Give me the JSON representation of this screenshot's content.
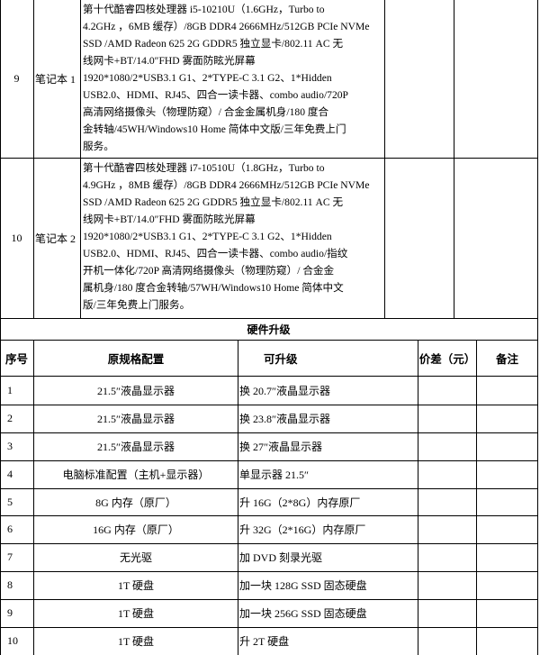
{
  "top_rows": [
    {
      "no": "9",
      "name": "笔记本 1",
      "spec": [
        "第十代酷睿四核处理器 i5-10210U（1.6GHz，Turbo to",
        "4.2GHz ，6MB 缓存）/8GB DDR4 2666MHz/512GB PCIe NVMe",
        "SSD /AMD Radeon 625 2G GDDR5 独立显卡/802.11 AC 无",
        "线网卡+BT/14.0″FHD 雾面防眩光屏幕",
        "1920*1080/2*USB3.1 G1、2*TYPE-C 3.1 G2、1*Hidden",
        "USB2.0、HDMI、RJ45、四合一读卡器、combo audio/720P",
        "高清网络摄像头（物理防窥）/ 合金金属机身/180 度合",
        "金转轴/45WH/Windows10 Home 简体中文版/三年免费上门",
        "服务。"
      ]
    },
    {
      "no": "10",
      "name": "笔记本 2",
      "spec": [
        "第十代酷睿四核处理器 i7-10510U（1.8GHz，Turbo to",
        "4.9GHz ，8MB 缓存）/8GB DDR4 2666MHz/512GB PCIe NVMe",
        "SSD /AMD Radeon 625 2G GDDR5 独立显卡/802.11 AC 无",
        "线网卡+BT/14.0″FHD 雾面防眩光屏幕",
        "1920*1080/2*USB3.1 G1、2*TYPE-C 3.1 G2、1*Hidden",
        "USB2.0、HDMI、RJ45、四合一读卡器、combo audio/指纹",
        "开机一体化/720P 高清网络摄像头（物理防窥）/ 合金金",
        "属机身/180 度合金转轴/57WH/Windows10 Home 简体中文",
        "版/三年免费上门服务。"
      ]
    }
  ],
  "upgrade": {
    "title": "硬件升级",
    "headers": [
      "序号",
      "原规格配置",
      "可升级",
      "价差（元）",
      "备注"
    ],
    "rows": [
      [
        "1",
        "21.5″液晶显示器",
        "换 20.7″液晶显示器"
      ],
      [
        "2",
        "21.5″液晶显示器",
        "换 23.8″液晶显示器"
      ],
      [
        "3",
        "21.5″液晶显示器",
        "换 27″液晶显示器"
      ],
      [
        "4",
        "电脑标准配置（主机+显示器）",
        "单显示器 21.5″"
      ],
      [
        "5",
        "8G 内存（原厂）",
        "升 16G（2*8G）内存原厂"
      ],
      [
        "6",
        "16G 内存（原厂）",
        "升 32G（2*16G）内存原厂"
      ],
      [
        "7",
        "无光驱",
        "加 DVD 刻录光驱"
      ],
      [
        "8",
        "1T 硬盘",
        "加一块 128G SSD 固态硬盘"
      ],
      [
        "9",
        "1T 硬盘",
        "加一块 256G SSD 固态硬盘"
      ],
      [
        "10",
        "1T 硬盘",
        "升 2T 硬盘"
      ]
    ]
  }
}
